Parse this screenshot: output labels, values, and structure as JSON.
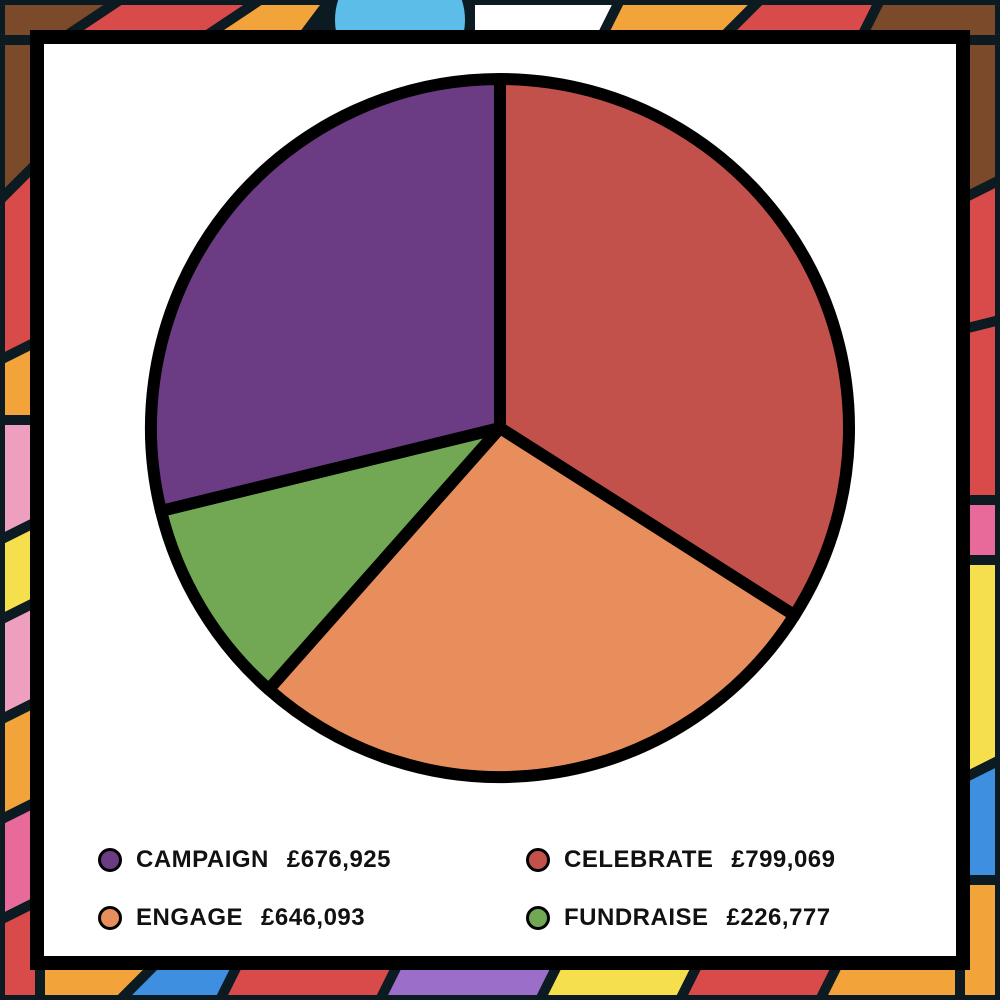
{
  "colors": {
    "frame": "#000000",
    "card": "#ffffff",
    "background_art": [
      "#d94a4a",
      "#f2a33a",
      "#5bbde8",
      "#ee9fc0",
      "#f5df4d",
      "#7b4a2a",
      "#9b6fc9",
      "#e86a9a",
      "#3f8fe0",
      "#0c1a22"
    ]
  },
  "chart_data": {
    "type": "pie",
    "title": "",
    "series": [
      {
        "name": "CAMPAIGN",
        "value": 676925,
        "display": "£676,925",
        "color": "#6b3b83"
      },
      {
        "name": "CELEBRATE",
        "value": 799069,
        "display": "£799,069",
        "color": "#c2514c"
      },
      {
        "name": "ENGAGE",
        "value": 646093,
        "display": "£646,093",
        "color": "#e88e5c"
      },
      {
        "name": "FUNDRAISE",
        "value": 226777,
        "display": "£226,777",
        "color": "#72a854"
      }
    ],
    "slice_order_clockwise_from_top": [
      "CELEBRATE",
      "ENGAGE",
      "FUNDRAISE",
      "CAMPAIGN"
    ],
    "legend_placement": "bottom"
  }
}
